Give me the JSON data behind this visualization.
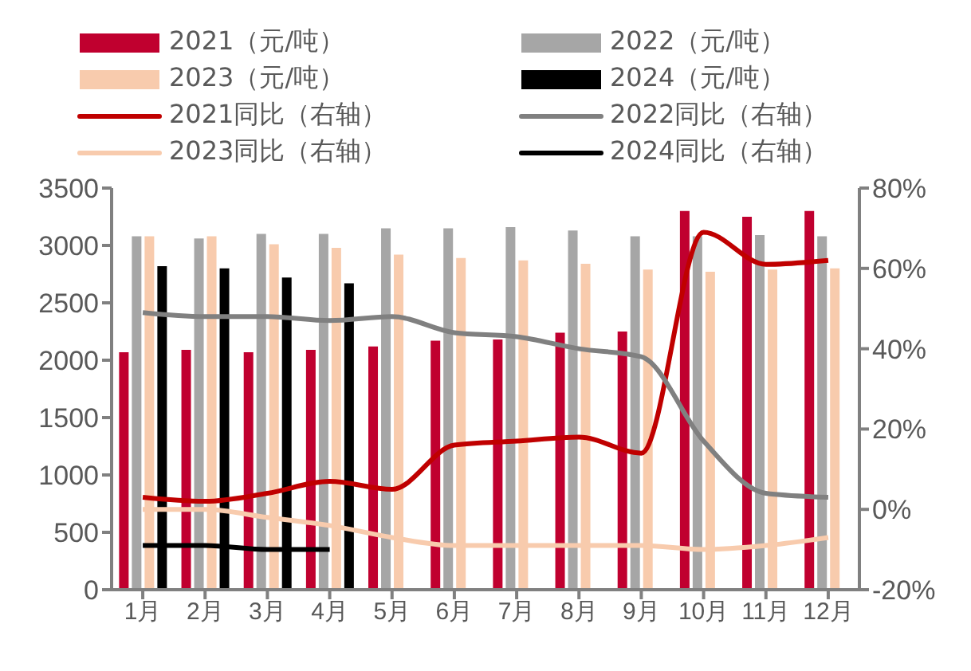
{
  "chart_data": {
    "type": "bar",
    "categories": [
      "1月",
      "2月",
      "3月",
      "4月",
      "5月",
      "6月",
      "7月",
      "8月",
      "9月",
      "10月",
      "11月",
      "12月"
    ],
    "series": [
      {
        "name": "2021（元/吨）",
        "color": "#c0002f",
        "values": [
          2070,
          2090,
          2070,
          2090,
          2120,
          2170,
          2180,
          2240,
          2250,
          3300,
          3250,
          3300
        ]
      },
      {
        "name": "2022（元/吨）",
        "color": "#a6a6a6",
        "values": [
          3080,
          3060,
          3100,
          3100,
          3150,
          3150,
          3160,
          3130,
          3080,
          3080,
          3090,
          3080
        ]
      },
      {
        "name": "2023（元/吨）",
        "color": "#f8cbad",
        "values": [
          3080,
          3080,
          3010,
          2980,
          2920,
          2890,
          2870,
          2840,
          2790,
          2770,
          2790,
          2800
        ]
      },
      {
        "name": "2024（元/吨）",
        "color": "#000000",
        "values": [
          2820,
          2800,
          2720,
          2670,
          null,
          null,
          null,
          null,
          null,
          null,
          null,
          null
        ]
      },
      {
        "name": "2021同比（右轴）",
        "type": "line",
        "axis": "y2",
        "color": "#c00000",
        "values": [
          3,
          2,
          4,
          7,
          5,
          16,
          17,
          18,
          14,
          69,
          61,
          62
        ]
      },
      {
        "name": "2022同比（右轴）",
        "type": "line",
        "axis": "y2",
        "color": "#808080",
        "values": [
          49,
          48,
          48,
          47,
          48,
          44,
          43,
          40,
          38,
          17,
          4,
          3
        ]
      },
      {
        "name": "2023同比（右轴）",
        "type": "line",
        "axis": "y2",
        "color": "#f8cbad",
        "values": [
          0,
          0,
          -2,
          -4,
          -7,
          -9,
          -9,
          -9,
          -9,
          -10,
          -9,
          -7
        ]
      },
      {
        "name": "2024同比（右轴）",
        "type": "line",
        "axis": "y2",
        "color": "#000000",
        "values": [
          -9,
          -9,
          -10,
          -10,
          null,
          null,
          null,
          null,
          null,
          null,
          null,
          null
        ]
      }
    ],
    "ylim": [
      0,
      3500
    ],
    "yticks": [
      0,
      500,
      1000,
      1500,
      2000,
      2500,
      3000,
      3500
    ],
    "y2lim": [
      -20,
      80
    ],
    "y2ticks": [
      {
        "value": -20,
        "label": "-20%"
      },
      {
        "value": 0,
        "label": "0%"
      },
      {
        "value": 20,
        "label": "20%"
      },
      {
        "value": 40,
        "label": "40%"
      },
      {
        "value": 60,
        "label": "60%"
      },
      {
        "value": 80,
        "label": "80%"
      }
    ],
    "grid": false,
    "legend": "top",
    "marker": "none"
  }
}
